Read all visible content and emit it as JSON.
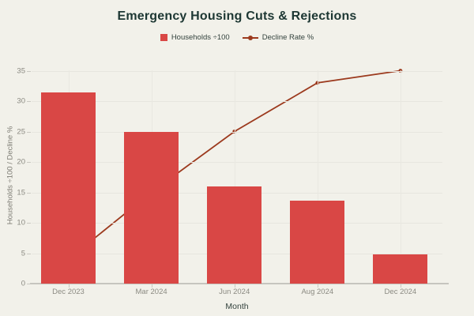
{
  "title": "Emergency Housing Cuts & Rejections",
  "legend": {
    "items": [
      {
        "label": "Households ÷100",
        "marker": "square",
        "color": "#d94745"
      },
      {
        "label": "Decline Rate %",
        "marker": "line",
        "color": "#9c3a1e"
      }
    ]
  },
  "chart_data": {
    "type": "bar+line",
    "categories": [
      "Dec 2023",
      "Mar 2024",
      "Jun 2024",
      "Aug 2024",
      "Dec 2024"
    ],
    "series": [
      {
        "name": "Households ÷100",
        "type": "bar",
        "color": "#d94745",
        "values": [
          31.4,
          25,
          16,
          13.7,
          4.8
        ]
      },
      {
        "name": "Decline Rate %",
        "type": "line",
        "color": "#9c3a1e",
        "values": [
          4,
          15,
          25,
          33,
          35
        ]
      }
    ],
    "title": "Emergency Housing Cuts & Rejections",
    "xlabel": "Month",
    "ylabel": "Households ÷100 / Decline %",
    "ylim": [
      0,
      35
    ],
    "yticks": [
      0,
      5,
      10,
      15,
      20,
      25,
      30,
      35
    ],
    "grid": true,
    "legend_position": "top"
  },
  "colors": {
    "background": "#f2f1ea",
    "bar": "#d94745",
    "line": "#9c3a1e",
    "title_text": "#1d3733",
    "axis_text": "#8b8a82",
    "label_text": "#33423d",
    "gridline": "#e7e6df"
  }
}
